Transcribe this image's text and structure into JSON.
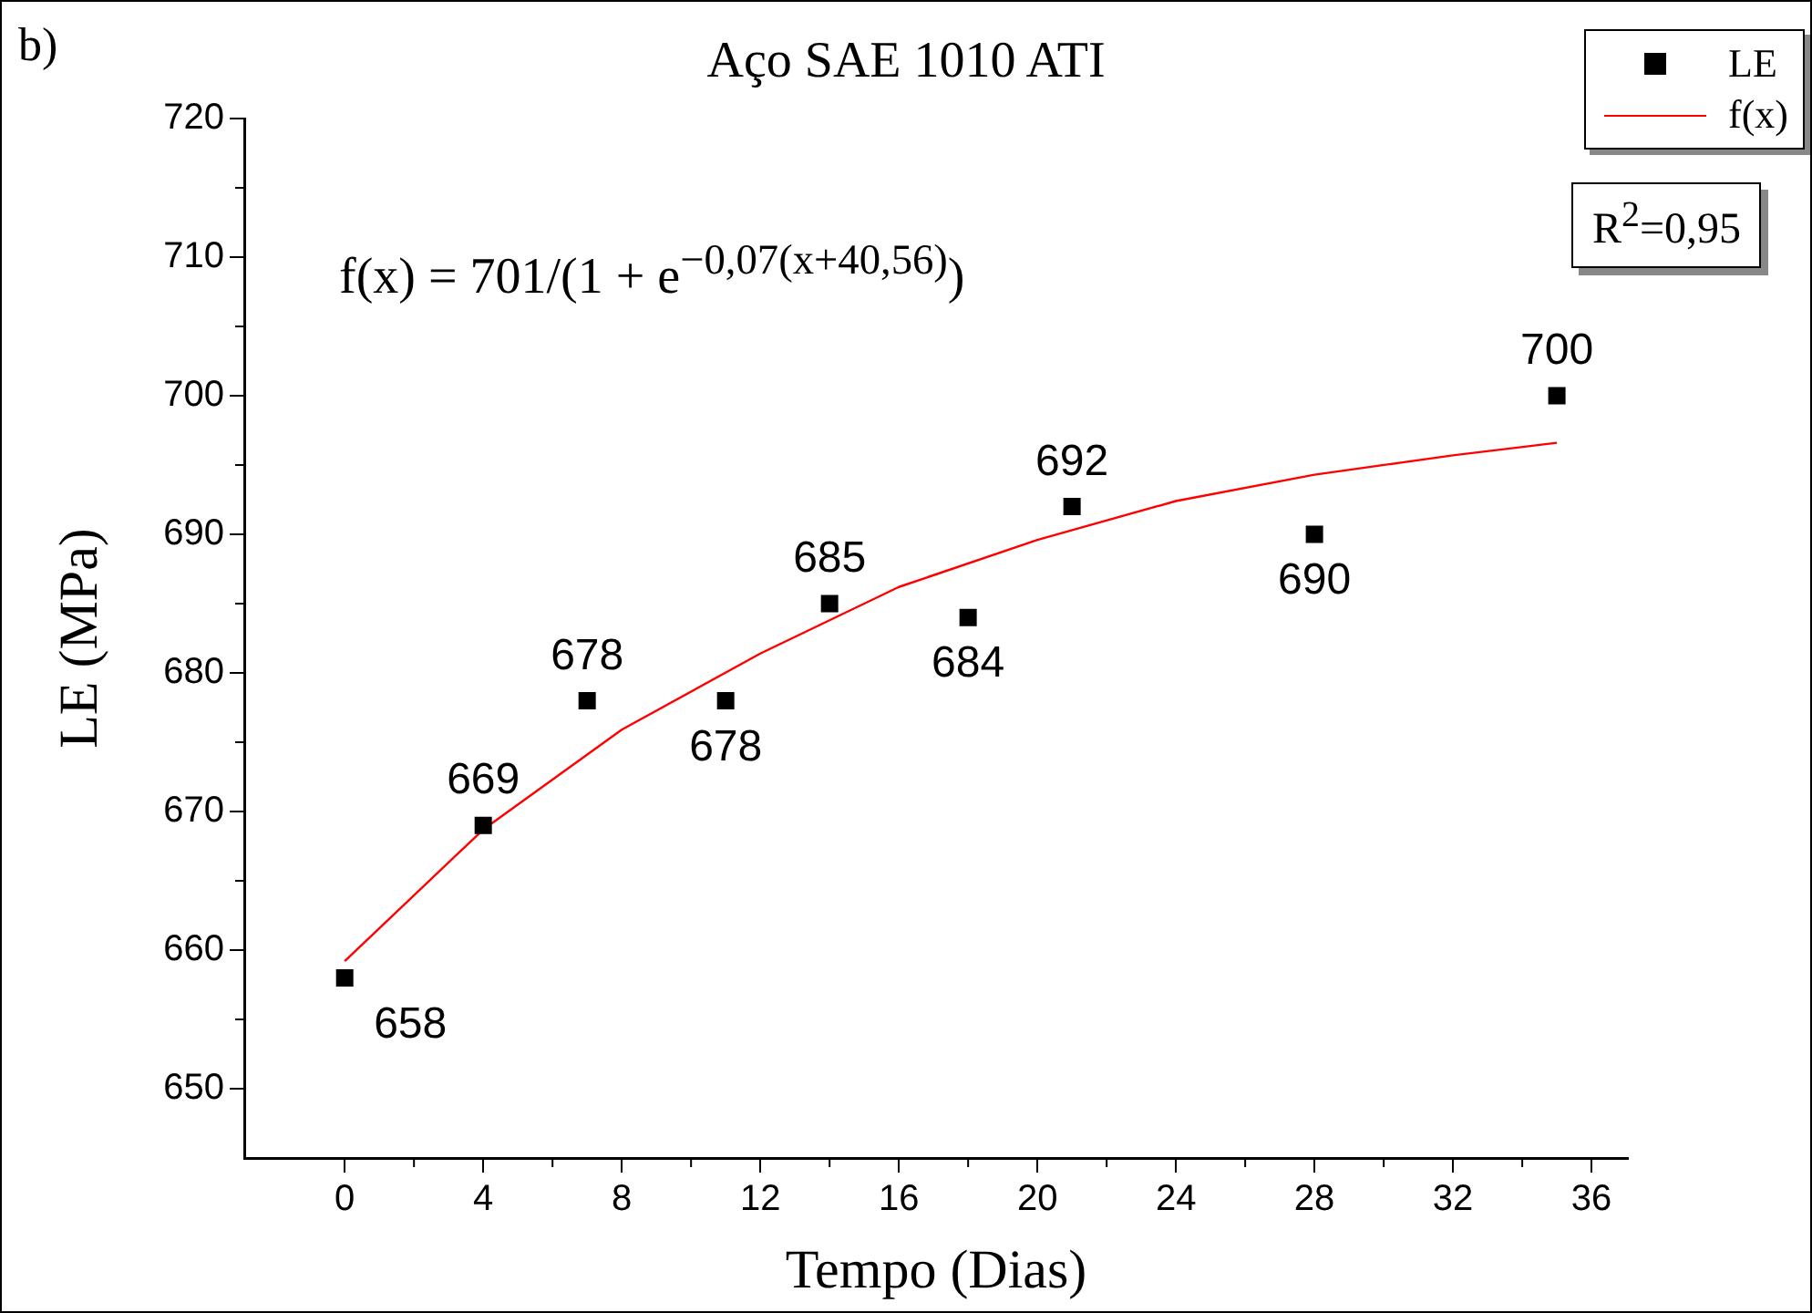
{
  "chart_data": {
    "type": "scatter",
    "title": "Aço SAE 1010 ATI",
    "xlabel": "Tempo (Dias)",
    "ylabel": "LE (MPa)",
    "annotations": [
      "b)",
      "f(x) = 701/(1 + e$^{−0,07(x+40,56)}$)",
      "R$^{2}$=0,95"
    ],
    "xlim": [
      -2.9,
      37.05
    ],
    "xticks": [
      0,
      4,
      8,
      12,
      16,
      20,
      24,
      28,
      32,
      36
    ],
    "ylim": [
      645,
      720
    ],
    "yticks": [
      650,
      660,
      670,
      680,
      690,
      700,
      710,
      720
    ],
    "grid": false,
    "legend": "top right",
    "series": [
      {
        "name": "LE",
        "marker": "square",
        "color": "#000000",
        "x": [
          0,
          4,
          7,
          11,
          14,
          18,
          21,
          28,
          35
        ],
        "values": [
          658,
          669,
          678,
          678,
          685,
          684,
          692,
          690,
          700
        ],
        "value_labels": [
          "658",
          "669",
          "678",
          "678",
          "685",
          "684",
          "692",
          "690",
          "700"
        ]
      },
      {
        "name": "f(x)",
        "type": "line",
        "marker": "none",
        "color": "#ff0000",
        "x": [
          0,
          4,
          8,
          12,
          16,
          20,
          24,
          28,
          32,
          35
        ],
        "values": [
          659.2,
          668.7,
          675.9,
          681.4,
          686.2,
          689.6,
          692.4,
          694.3,
          695.7,
          696.6
        ]
      }
    ]
  }
}
